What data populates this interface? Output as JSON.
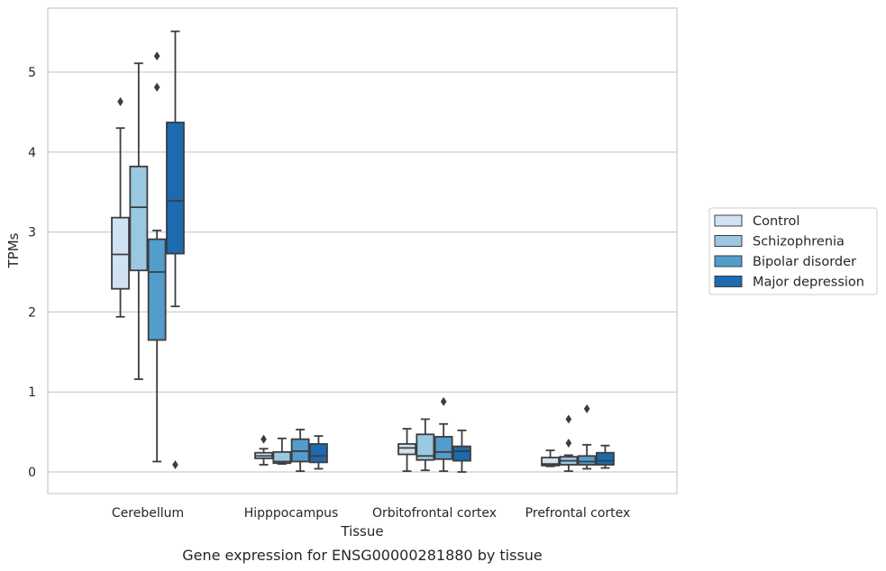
{
  "caption": "Gene expression for ENSG00000281880 by tissue",
  "chart_data": {
    "type": "box",
    "xlabel": "Tissue",
    "ylabel": "TPMs",
    "ylim": [
      -0.27,
      5.8
    ],
    "yticks": [
      0,
      1,
      2,
      3,
      4,
      5
    ],
    "grid": "horizontal",
    "legend_position": "right",
    "categories": [
      "Cerebellum",
      "Hipppocampus",
      "Orbitofrontal cortex",
      "Prefrontal cortex"
    ],
    "series": [
      {
        "name": "Control",
        "color": "#d1e2f2",
        "boxes": [
          {
            "whisker_low": 1.94,
            "q1": 2.29,
            "median": 2.72,
            "q3": 3.18,
            "whisker_high": 4.3,
            "outliers": [
              4.63
            ]
          },
          {
            "whisker_low": 0.09,
            "q1": 0.17,
            "median": 0.2,
            "q3": 0.24,
            "whisker_high": 0.29,
            "outliers": [
              0.41
            ]
          },
          {
            "whisker_low": 0.01,
            "q1": 0.22,
            "median": 0.3,
            "q3": 0.35,
            "whisker_high": 0.54,
            "outliers": []
          },
          {
            "whisker_low": 0.07,
            "q1": 0.08,
            "median": 0.1,
            "q3": 0.18,
            "whisker_high": 0.27,
            "outliers": []
          }
        ]
      },
      {
        "name": "Schizophrenia",
        "color": "#9ac8e0",
        "boxes": [
          {
            "whisker_low": 1.16,
            "q1": 2.52,
            "median": 3.31,
            "q3": 3.82,
            "whisker_high": 5.11,
            "outliers": []
          },
          {
            "whisker_low": 0.1,
            "q1": 0.11,
            "median": 0.13,
            "q3": 0.25,
            "whisker_high": 0.42,
            "outliers": []
          },
          {
            "whisker_low": 0.02,
            "q1": 0.15,
            "median": 0.2,
            "q3": 0.47,
            "whisker_high": 0.66,
            "outliers": []
          },
          {
            "whisker_low": 0.01,
            "q1": 0.09,
            "median": 0.14,
            "q3": 0.19,
            "whisker_high": 0.21,
            "outliers": [
              0.36,
              0.66
            ]
          }
        ]
      },
      {
        "name": "Bipolar disorder",
        "color": "#529dcc",
        "boxes": [
          {
            "whisker_low": 0.13,
            "q1": 1.65,
            "median": 2.5,
            "q3": 2.91,
            "whisker_high": 3.02,
            "outliers": [
              4.81,
              5.2
            ]
          },
          {
            "whisker_low": 0.01,
            "q1": 0.13,
            "median": 0.26,
            "q3": 0.41,
            "whisker_high": 0.53,
            "outliers": []
          },
          {
            "whisker_low": 0.01,
            "q1": 0.16,
            "median": 0.25,
            "q3": 0.44,
            "whisker_high": 0.6,
            "outliers": [
              0.88
            ]
          },
          {
            "whisker_low": 0.04,
            "q1": 0.09,
            "median": 0.13,
            "q3": 0.2,
            "whisker_high": 0.34,
            "outliers": [
              0.79
            ]
          }
        ]
      },
      {
        "name": "Major depression",
        "color": "#1c6aaf",
        "boxes": [
          {
            "whisker_low": 2.07,
            "q1": 2.73,
            "median": 3.39,
            "q3": 4.37,
            "whisker_high": 5.51,
            "outliers": [
              0.09
            ]
          },
          {
            "whisker_low": 0.04,
            "q1": 0.12,
            "median": 0.2,
            "q3": 0.35,
            "whisker_high": 0.45,
            "outliers": []
          },
          {
            "whisker_low": 0.0,
            "q1": 0.14,
            "median": 0.26,
            "q3": 0.32,
            "whisker_high": 0.52,
            "outliers": []
          },
          {
            "whisker_low": 0.05,
            "q1": 0.09,
            "median": 0.14,
            "q3": 0.24,
            "whisker_high": 0.33,
            "outliers": []
          }
        ]
      }
    ]
  }
}
